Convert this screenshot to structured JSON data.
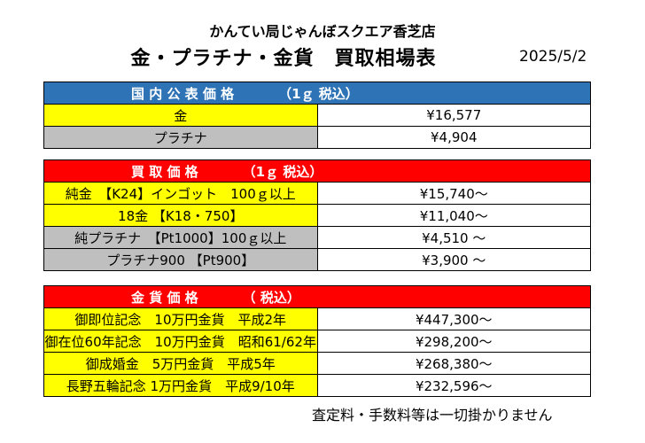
{
  "header": {
    "store_name": "かんてい局じゃんぼスクエア香芝店",
    "title": "金・プラチナ・金貨　買取相場表",
    "date": "2025/5/2"
  },
  "sections": [
    {
      "heading": "国 内 公 表 価 格",
      "unit": "（1ｇ 税込）",
      "header_color": "#2e73b6",
      "rows": [
        {
          "label": "金",
          "value": "¥16,577",
          "row_color": "#ffff00"
        },
        {
          "label": "プラチナ",
          "value": "¥4,904",
          "row_color": "#bfbfbf"
        }
      ]
    },
    {
      "heading": "買 取 価 格",
      "unit": "（1ｇ 税込）",
      "header_color": "#ff0000",
      "rows": [
        {
          "label": "純金　【K24】インゴット　100ｇ以上",
          "value": "¥15,740～",
          "row_color": "#ffff00"
        },
        {
          "label": "18金 【K18・750】",
          "value": "¥11,040～",
          "row_color": "#ffff00"
        },
        {
          "label": "純プラチナ　【Pt1000】100ｇ以上",
          "value": "¥4,510 ～",
          "row_color": "#bfbfbf"
        },
        {
          "label": "プラチナ900 【Pt900】",
          "value": "¥3,900 ～",
          "row_color": "#bfbfbf"
        }
      ]
    },
    {
      "heading": "金 貨 価 格",
      "unit": "（ 税込）",
      "header_color": "#ff0000",
      "rows": [
        {
          "label": "御即位記念　10万円金貨　平成2年",
          "value": "¥447,300～",
          "row_color": "#ffff00"
        },
        {
          "label": "御在位60年記念　10万円金貨　昭和61/62年",
          "value": "¥298,200～",
          "row_color": "#ffff00"
        },
        {
          "label": "御成婚金　5万円金貨　平成5年",
          "value": "¥268,380～",
          "row_color": "#ffff00"
        },
        {
          "label": "長野五輪記念 1万円金貨　平成9/10年",
          "value": "¥232,596～",
          "row_color": "#ffff00"
        }
      ]
    }
  ],
  "footer_note": "査定料・手数料等は一切掛かりません"
}
